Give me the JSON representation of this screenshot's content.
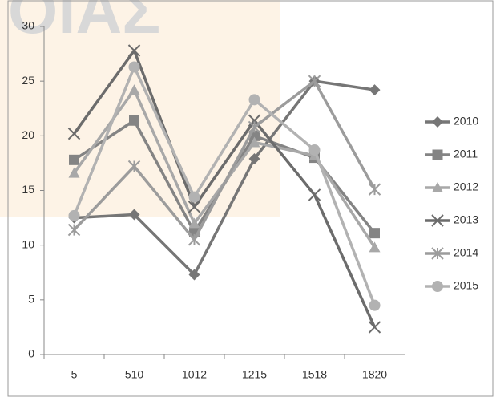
{
  "chart_data": {
    "type": "line",
    "watermark": "ΟΙΑΣ",
    "categories": [
      "5",
      "510",
      "1012",
      "1215",
      "1518",
      "1820"
    ],
    "series": [
      {
        "name": "2010",
        "color": "#767676",
        "marker": "diamond",
        "values": [
          12.5,
          12.8,
          7.3,
          17.9,
          25.0,
          24.2
        ]
      },
      {
        "name": "2011",
        "color": "#848484",
        "marker": "square",
        "values": [
          17.8,
          21.4,
          11.2,
          20.0,
          18.0,
          11.1
        ]
      },
      {
        "name": "2012",
        "color": "#a8a8a8",
        "marker": "triangle",
        "values": [
          16.6,
          24.2,
          12.0,
          19.4,
          18.2,
          9.8
        ]
      },
      {
        "name": "2013",
        "color": "#6c6c6c",
        "marker": "x",
        "values": [
          20.2,
          27.8,
          13.5,
          21.4,
          14.6,
          2.5
        ]
      },
      {
        "name": "2014",
        "color": "#9c9c9c",
        "marker": "star",
        "values": [
          11.4,
          17.2,
          10.5,
          20.8,
          25.0,
          15.1
        ]
      },
      {
        "name": "2015",
        "color": "#b2b2b2",
        "marker": "circle",
        "values": [
          12.7,
          26.3,
          14.4,
          23.3,
          18.7,
          4.5
        ]
      }
    ],
    "ylim": [
      0,
      30
    ],
    "yticks": [
      0,
      5,
      10,
      15,
      20,
      25,
      30
    ],
    "grid": false,
    "legend": "right"
  }
}
